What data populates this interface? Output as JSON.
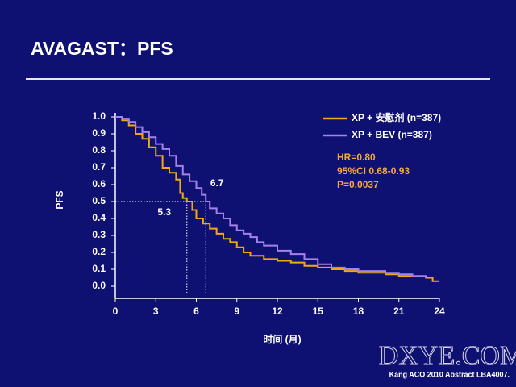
{
  "slide_title": "AVAGAST：PFS",
  "footnote": "Kang ACO 2010 Abstract LBA4007.",
  "watermark": "DXYE.COM",
  "chart_data": {
    "type": "step",
    "xlabel": "时间 (月)",
    "ylabel": "PFS",
    "xlim": [
      0,
      24
    ],
    "ylim": [
      0,
      1
    ],
    "xticks": [
      0,
      3,
      6,
      9,
      12,
      15,
      18,
      21,
      24
    ],
    "yticks": [
      {
        "value": 0,
        "label": "0.0"
      },
      0.1,
      0.2,
      0.3,
      0.4,
      0.5,
      0.6,
      0.7,
      0.8,
      0.9,
      {
        "value": 1,
        "label": "1.0"
      }
    ],
    "legend": "top-right",
    "series": [
      {
        "name": "XP + 安慰剂 (n=387)",
        "color": "#f2a90f",
        "x": [
          0,
          0.5,
          1,
          1.5,
          2,
          2.5,
          3,
          3.5,
          4,
          4.5,
          4.8,
          5,
          5.3,
          5.7,
          6,
          6.5,
          7,
          7.5,
          8,
          8.5,
          9,
          9.5,
          10,
          11,
          12,
          13,
          14,
          15,
          16,
          17,
          18,
          20,
          21,
          23,
          23.5,
          24
        ],
        "values": [
          1,
          0.98,
          0.95,
          0.9,
          0.87,
          0.82,
          0.77,
          0.7,
          0.67,
          0.63,
          0.55,
          0.52,
          0.5,
          0.45,
          0.4,
          0.37,
          0.34,
          0.31,
          0.28,
          0.26,
          0.23,
          0.2,
          0.18,
          0.16,
          0.15,
          0.14,
          0.12,
          0.11,
          0.1,
          0.09,
          0.08,
          0.07,
          0.06,
          0.05,
          0.03,
          0.03
        ]
      },
      {
        "name": "XP + BEV (n=387)",
        "color": "#a583e6",
        "x": [
          0,
          0.5,
          1,
          1.5,
          2,
          2.5,
          3,
          3.5,
          4,
          4.5,
          5,
          5.5,
          6,
          6.4,
          6.7,
          7,
          7.5,
          8,
          8.5,
          9,
          9.5,
          10,
          10.5,
          11,
          12,
          13,
          14,
          15,
          16,
          17,
          18,
          20,
          21,
          22,
          23
        ],
        "values": [
          1,
          0.99,
          0.97,
          0.94,
          0.91,
          0.88,
          0.84,
          0.81,
          0.77,
          0.71,
          0.66,
          0.62,
          0.58,
          0.54,
          0.5,
          0.46,
          0.43,
          0.4,
          0.36,
          0.33,
          0.31,
          0.29,
          0.26,
          0.24,
          0.21,
          0.19,
          0.16,
          0.13,
          0.11,
          0.1,
          0.09,
          0.08,
          0.07,
          0.06,
          0.05
        ]
      }
    ],
    "reference_line": 0.5,
    "medians": [
      5.3,
      6.7
    ],
    "annotations": [
      "HR=0.80",
      "95%CI 0.68-0.93",
      "P=0.0037"
    ]
  }
}
